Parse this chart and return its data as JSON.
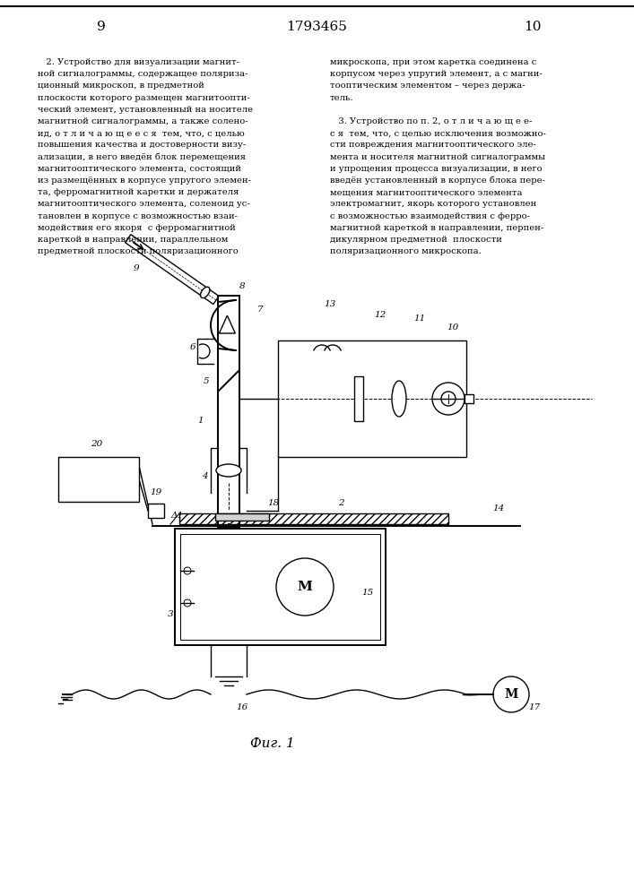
{
  "background_color": "#ffffff",
  "page_number_left": "9",
  "page_number_center": "1793465",
  "page_number_right": "10",
  "left_column_text": [
    "   2. Устройство для визуализации магнит-",
    "ной сигналограммы, содержащее поляриза-",
    "ционный микроскоп, в предметной",
    "плоскости которого размещен магнитоопти-",
    "ческий элемент, установленный на носителе",
    "магнитной сигналограммы, а также солено-",
    "ид, о т л и ч а ю щ е е с я  тем, что, с целью",
    "повышения качества и достоверности визу-",
    "ализации, в него введён блок перемещения",
    "магнитооптического элемента, состоящий",
    "из размещённых в корпусе упругого элемен-",
    "та, ферромагнитной каретки и держателя",
    "магнитооптического элемента, соленоид ус-",
    "тановлен в корпусе с возможностью взаи-",
    "модействия его якоря  с ферромагнитной",
    "кареткой в направлении, параллельном",
    "предметной плоскости поляризационного"
  ],
  "right_column_text": [
    "микроскопа, при этом каретка соединена с",
    "корпусом через упругий элемент, а с магни-",
    "тооптическим элементом – через держа-",
    "тель.",
    "",
    "   3. Устройство по п. 2, о т л и ч а ю щ е е-",
    "с я  тем, что, с целью исключения возможно-",
    "сти повреждения магнитооптического эле-",
    "мента и носителя магнитной сигналограммы",
    "и упрощения процесса визуализации, в него",
    "введён установленный в корпусе блока пере-",
    "мещения магнитооптического элемента",
    "электромагнит, якорь которого установлен",
    "с возможностью взаимодействия с ферро-",
    "магнитной кареткой в направлении, перпен-",
    "дикулярном предметной  плоскости",
    "поляризационного микроскопа."
  ],
  "fig_label": "Фиг. 1"
}
